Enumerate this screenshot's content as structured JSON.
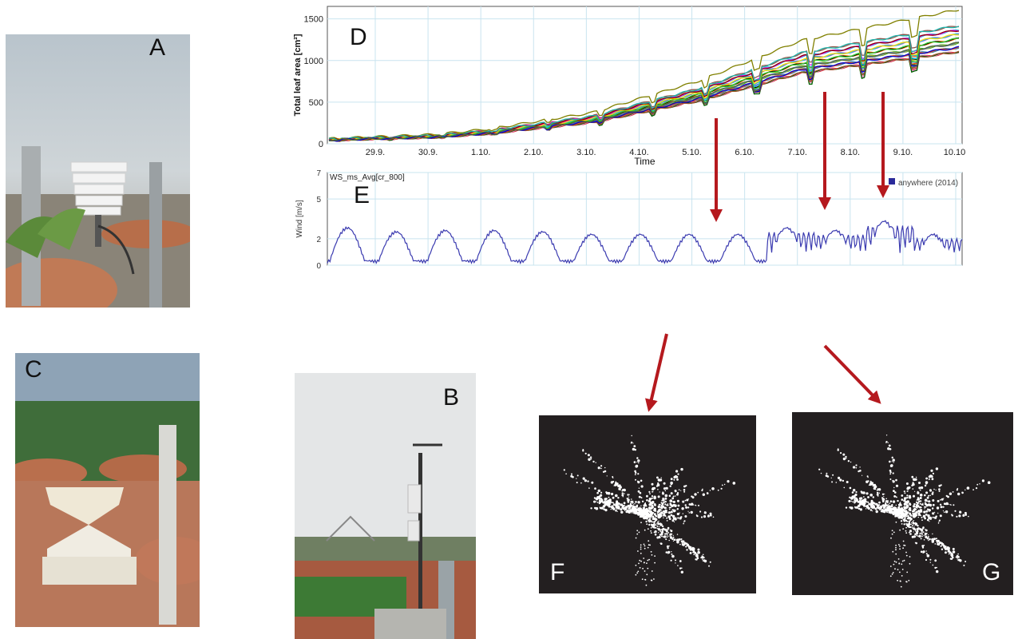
{
  "panels": {
    "a": {
      "label": "A"
    },
    "b": {
      "label": "B"
    },
    "c": {
      "label": "C"
    },
    "d": {
      "label": "D"
    },
    "e": {
      "label": "E"
    },
    "f": {
      "label": "F"
    },
    "g": {
      "label": "G"
    }
  },
  "chart_data": [
    {
      "type": "line",
      "ylabel": "Total leaf area [cm²]",
      "xlabel": "Time",
      "yticks": [
        "0",
        "500",
        "1000",
        "1500"
      ],
      "ylim": [
        0,
        1650
      ],
      "categories": [
        "29.9.",
        "30.9.",
        "1.10.",
        "2.10.",
        "3.10.",
        "4.10.",
        "5.10.",
        "6.10.",
        "7.10.",
        "8.10.",
        "9.10.",
        "10.10."
      ],
      "grid": true,
      "series_count": 24,
      "series_colors": [
        "#d62728",
        "#1f77b4",
        "#2ca02c",
        "#ff7f0e",
        "#9467bd",
        "#17becf",
        "#8c564b",
        "#e377c2",
        "#7f7f7f",
        "#bcbd22",
        "#000000",
        "#00bfff",
        "#ff00ff",
        "#808000",
        "#006400",
        "#ff4500",
        "#4169e1",
        "#32cd32",
        "#ffd700",
        "#8b0000",
        "#20b2aa",
        "#a0522d",
        "#0000cd",
        "#556b2f"
      ],
      "median_series": [
        {
          "x": "28.9.",
          "y": 50
        },
        {
          "x": "29.9.",
          "y": 70
        },
        {
          "x": "30.9.",
          "y": 90
        },
        {
          "x": "1.10.",
          "y": 140
        },
        {
          "x": "2.10.",
          "y": 220
        },
        {
          "x": "3.10.",
          "y": 300
        },
        {
          "x": "4.10.",
          "y": 450
        },
        {
          "x": "5.10.",
          "y": 600
        },
        {
          "x": "6.10.",
          "y": 800
        },
        {
          "x": "7.10.",
          "y": 1000
        },
        {
          "x": "8.10.",
          "y": 1100
        },
        {
          "x": "9.10.",
          "y": 1200
        },
        {
          "x": "10.10.",
          "y": 1300
        }
      ]
    },
    {
      "type": "line",
      "title": "WS_ms_Avg[cr_800]",
      "ylabel": "Wind [m/s]",
      "yticks": [
        "0",
        "2",
        "5",
        "7"
      ],
      "ylim": [
        0,
        7
      ],
      "legend": "anywhere (2014)",
      "legend_color": "#2a2a9a",
      "line_color": "#3b3bb0",
      "grid": true,
      "daily_peaks": [
        2.5,
        2.2,
        2.3,
        2.3,
        2.2,
        2.0,
        2.0,
        2.0,
        2.0,
        2.5,
        2.3,
        3.0,
        2.0
      ]
    }
  ]
}
